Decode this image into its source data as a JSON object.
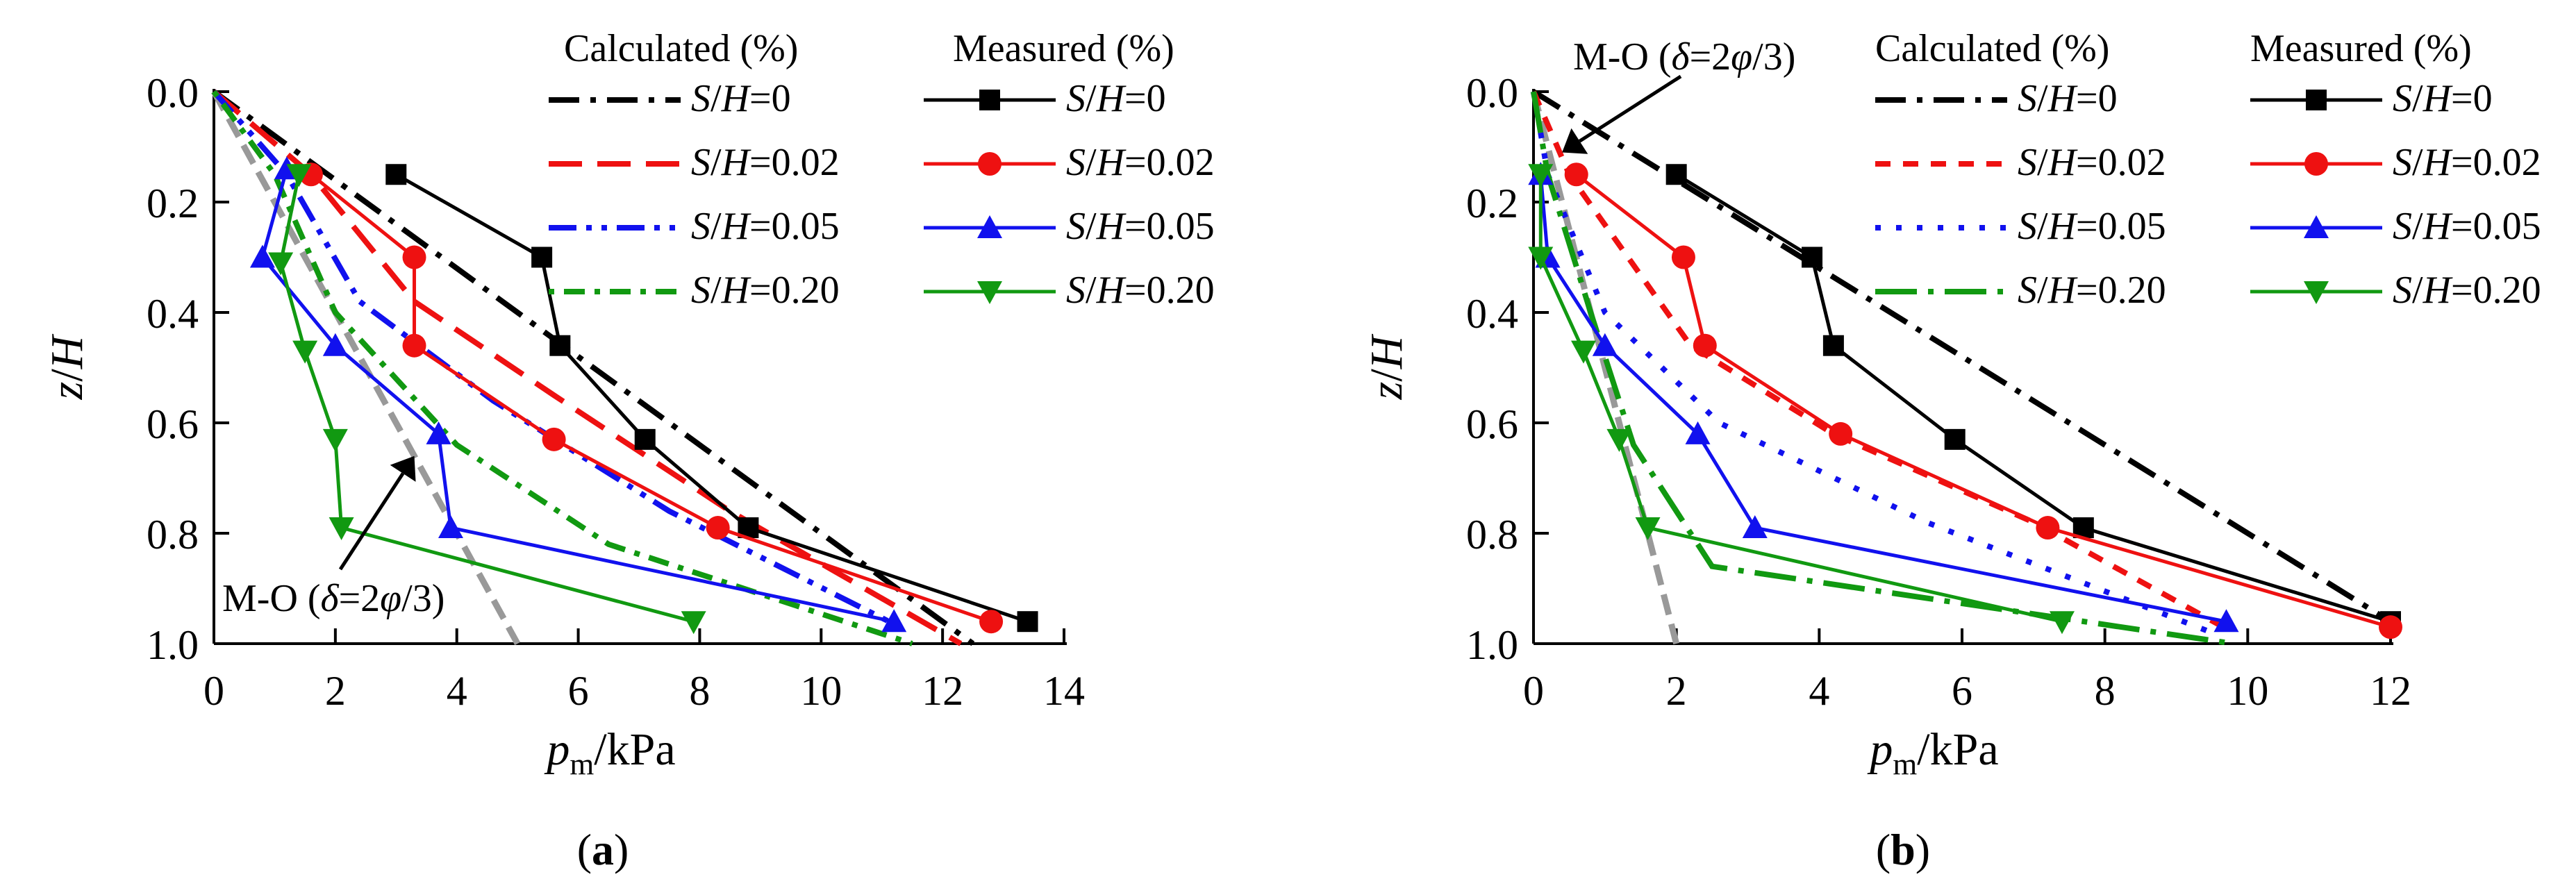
{
  "figure": {
    "panels": [
      "(a)",
      "(b)"
    ]
  },
  "chart_data": [
    {
      "type": "line",
      "panel_label": "(a)",
      "xlabel": "p_m/kPa",
      "ylabel": "z/H",
      "xlim": [
        0,
        14
      ],
      "ylim": [
        0.0,
        1.0
      ],
      "y_inverted": true,
      "xticks": [
        0,
        2,
        4,
        6,
        8,
        10,
        12,
        14
      ],
      "yticks": [
        0.0,
        0.2,
        0.4,
        0.6,
        0.8,
        1.0
      ],
      "xtick_labels": [
        "0",
        "2",
        "4",
        "6",
        "8",
        "10",
        "12",
        "14"
      ],
      "ytick_labels": [
        "0.0",
        "0.2",
        "0.4",
        "0.6",
        "0.8",
        "1.0"
      ],
      "legend_headers": {
        "calculated": "Calculated  (%)",
        "measured": "Measured  (%)"
      },
      "legend_position": "top-right",
      "calculated_series": [
        {
          "name": "S/H=0",
          "color": "#000000",
          "dash": "dashdot",
          "points": [
            [
              0,
              0
            ],
            [
              12.5,
              1.0
            ]
          ]
        },
        {
          "name": "S/H=0.02",
          "color": "#ee1111",
          "dash": "dash",
          "points": [
            [
              0,
              0
            ],
            [
              1.6,
              0.15
            ],
            [
              3.3,
              0.38
            ],
            [
              5.6,
              0.55
            ],
            [
              8.5,
              0.76
            ],
            [
              12.3,
              1.0
            ]
          ]
        },
        {
          "name": "S/H=0.05",
          "color": "#1111ee",
          "dash": "dashdotdot",
          "points": [
            [
              0,
              0
            ],
            [
              1.2,
              0.15
            ],
            [
              2.4,
              0.38
            ],
            [
              4.6,
              0.56
            ],
            [
              7.5,
              0.76
            ],
            [
              11.3,
              0.97
            ]
          ]
        },
        {
          "name": "S/H=0.20",
          "color": "#119911",
          "dash": "dotdash",
          "points": [
            [
              0,
              0
            ],
            [
              1.0,
              0.15
            ],
            [
              2.0,
              0.4
            ],
            [
              4.0,
              0.64
            ],
            [
              6.5,
              0.82
            ],
            [
              11.5,
              1.0
            ]
          ]
        }
      ],
      "measured_series": [
        {
          "name": "S/H=0",
          "color": "#000000",
          "marker": "square",
          "points": [
            [
              3.0,
              0.15
            ],
            [
              5.4,
              0.3
            ],
            [
              5.7,
              0.46
            ],
            [
              7.1,
              0.63
            ],
            [
              8.8,
              0.79
            ],
            [
              13.4,
              0.96
            ]
          ]
        },
        {
          "name": "S/H=0.02",
          "color": "#ee1111",
          "marker": "circle",
          "points": [
            [
              1.6,
              0.15
            ],
            [
              3.3,
              0.3
            ],
            [
              3.3,
              0.46
            ],
            [
              5.6,
              0.63
            ],
            [
              8.3,
              0.79
            ],
            [
              12.8,
              0.96
            ]
          ]
        },
        {
          "name": "S/H=0.05",
          "color": "#1111ee",
          "marker": "triangle-up",
          "points": [
            [
              1.2,
              0.14
            ],
            [
              0.8,
              0.3
            ],
            [
              2.0,
              0.46
            ],
            [
              3.7,
              0.62
            ],
            [
              3.9,
              0.79
            ],
            [
              11.2,
              0.96
            ]
          ]
        },
        {
          "name": "S/H=0.20",
          "color": "#119911",
          "marker": "triangle-down",
          "points": [
            [
              1.4,
              0.15
            ],
            [
              1.1,
              0.31
            ],
            [
              1.5,
              0.47
            ],
            [
              2.0,
              0.63
            ],
            [
              2.1,
              0.79
            ],
            [
              7.9,
              0.96
            ]
          ]
        }
      ],
      "reference_line": {
        "name": "M-O",
        "color": "#999999",
        "points": [
          [
            0,
            0
          ],
          [
            5.0,
            1.0
          ]
        ]
      },
      "annotation": {
        "text": "M-O (δ=2φ/3)",
        "target": [
          3.3,
          0.66
        ]
      }
    },
    {
      "type": "line",
      "panel_label": "(b)",
      "xlabel": "p_m/kPa",
      "ylabel": "z/H",
      "xlim": [
        0,
        12
      ],
      "ylim": [
        0.0,
        1.0
      ],
      "y_inverted": true,
      "xticks": [
        0,
        2,
        4,
        6,
        8,
        10,
        12
      ],
      "yticks": [
        0.0,
        0.2,
        0.4,
        0.6,
        0.8,
        1.0
      ],
      "xtick_labels": [
        "0",
        "2",
        "4",
        "6",
        "8",
        "10",
        "12"
      ],
      "ytick_labels": [
        "0.0",
        "0.2",
        "0.4",
        "0.6",
        "0.8",
        "1.0"
      ],
      "legend_headers": {
        "calculated": "Calculated  (%)",
        "measured": "Measured  (%)"
      },
      "legend_position": "top-right",
      "calculated_series": [
        {
          "name": "S/H=0",
          "color": "#000000",
          "dash": "dashdot",
          "points": [
            [
              0,
              0
            ],
            [
              12.0,
              0.96
            ]
          ]
        },
        {
          "name": "S/H=0.02",
          "color": "#ee1111",
          "dash": "dash-short",
          "points": [
            [
              0,
              0
            ],
            [
              0.5,
              0.15
            ],
            [
              2.2,
              0.46
            ],
            [
              4.2,
              0.62
            ],
            [
              7.0,
              0.78
            ],
            [
              9.8,
              0.98
            ]
          ]
        },
        {
          "name": "S/H=0.05",
          "color": "#1111ee",
          "dash": "dot",
          "points": [
            [
              0,
              0
            ],
            [
              0.2,
              0.15
            ],
            [
              1.0,
              0.4
            ],
            [
              2.6,
              0.6
            ],
            [
              5.5,
              0.78
            ],
            [
              9.5,
              0.98
            ]
          ]
        },
        {
          "name": "S/H=0.20",
          "color": "#119911",
          "dash": "longdash-dot",
          "points": [
            [
              0,
              0
            ],
            [
              0.2,
              0.15
            ],
            [
              0.8,
              0.4
            ],
            [
              1.4,
              0.64
            ],
            [
              2.5,
              0.86
            ],
            [
              9.8,
              1.0
            ]
          ]
        }
      ],
      "measured_series": [
        {
          "name": "S/H=0",
          "color": "#000000",
          "marker": "square",
          "points": [
            [
              2.0,
              0.15
            ],
            [
              3.9,
              0.3
            ],
            [
              4.2,
              0.46
            ],
            [
              5.9,
              0.63
            ],
            [
              7.7,
              0.79
            ],
            [
              12.0,
              0.96
            ]
          ]
        },
        {
          "name": "S/H=0.02",
          "color": "#ee1111",
          "marker": "circle",
          "points": [
            [
              0.6,
              0.15
            ],
            [
              2.1,
              0.3
            ],
            [
              2.4,
              0.46
            ],
            [
              4.3,
              0.62
            ],
            [
              7.2,
              0.79
            ],
            [
              12.0,
              0.97
            ]
          ]
        },
        {
          "name": "S/H=0.05",
          "color": "#1111ee",
          "marker": "triangle-up",
          "points": [
            [
              0.1,
              0.15
            ],
            [
              0.2,
              0.3
            ],
            [
              1.0,
              0.46
            ],
            [
              2.3,
              0.62
            ],
            [
              3.1,
              0.79
            ],
            [
              9.7,
              0.96
            ]
          ]
        },
        {
          "name": "S/H=0.20",
          "color": "#119911",
          "marker": "triangle-down",
          "points": [
            [
              0.1,
              0.15
            ],
            [
              0.1,
              0.3
            ],
            [
              0.7,
              0.47
            ],
            [
              1.2,
              0.63
            ],
            [
              1.6,
              0.79
            ],
            [
              7.4,
              0.96
            ]
          ]
        }
      ],
      "reference_line": {
        "name": "M-O",
        "color": "#999999",
        "points": [
          [
            0,
            0
          ],
          [
            2.0,
            1.0
          ]
        ]
      },
      "annotation": {
        "text": "M-O (δ=2φ/3)",
        "target": [
          0.4,
          0.11
        ]
      }
    }
  ]
}
